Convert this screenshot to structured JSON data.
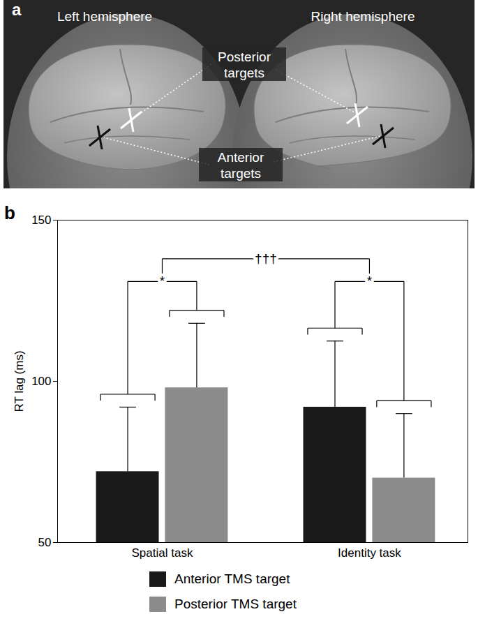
{
  "diagram": {
    "label": "a",
    "left_title": "Left hemisphere",
    "right_title": "Right hemisphere",
    "posterior_label": "Posterior targets",
    "anterior_label": "Anterior targets"
  },
  "chart_data": {
    "label": "b",
    "type": "bar",
    "categories": [
      "Spatial task",
      "Identity task"
    ],
    "series": [
      {
        "name": "Anterior TMS target",
        "color": "#1a1a1a",
        "values": [
          72,
          92
        ],
        "errors": [
          20,
          20.5
        ]
      },
      {
        "name": "Posterior TMS target",
        "color": "#8c8c8c",
        "values": [
          98,
          70
        ],
        "errors": [
          20,
          20
        ]
      }
    ],
    "ylabel": "RT lag (ms)",
    "ylim": [
      50,
      150
    ],
    "yticks": [
      50,
      100,
      150
    ],
    "annotations": [
      "*",
      "*",
      "†††"
    ],
    "legend": "bottom"
  }
}
